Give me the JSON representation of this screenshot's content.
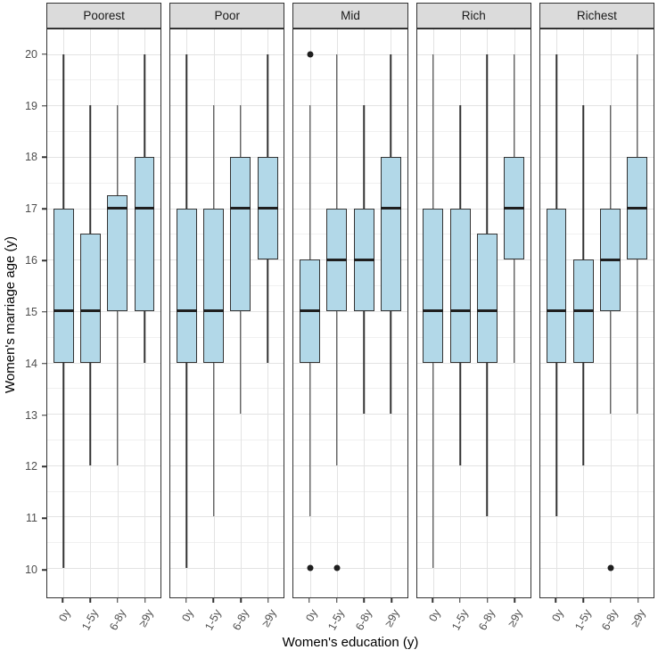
{
  "chart_data": {
    "type": "boxplot",
    "title": "",
    "xlabel": "Women's education (y)",
    "ylabel": "Women's marriage age (y)",
    "categories": [
      "0y",
      "1-5y",
      "6-8y",
      "≥9y"
    ],
    "yticks": [
      10,
      11,
      12,
      13,
      14,
      15,
      16,
      17,
      18,
      19,
      20
    ],
    "ylim": [
      10,
      20
    ],
    "grid": {
      "major": true,
      "minor": true
    },
    "legend": "none",
    "facets": [
      {
        "label": "Poorest",
        "boxes": [
          {
            "category": "0y",
            "whisker_low": 10,
            "q1": 14,
            "median": 15,
            "q3": 17,
            "whisker_high": 20,
            "outliers": []
          },
          {
            "category": "1-5y",
            "whisker_low": 12,
            "q1": 14,
            "median": 15,
            "q3": 16.5,
            "whisker_high": 19,
            "outliers": []
          },
          {
            "category": "6-8y",
            "whisker_low": 12,
            "q1": 15,
            "median": 17,
            "q3": 17.25,
            "whisker_high": 19,
            "outliers": []
          },
          {
            "category": "≥9y",
            "whisker_low": 14,
            "q1": 15,
            "median": 17,
            "q3": 18,
            "whisker_high": 20,
            "outliers": []
          }
        ]
      },
      {
        "label": "Poor",
        "boxes": [
          {
            "category": "0y",
            "whisker_low": 10,
            "q1": 14,
            "median": 15,
            "q3": 17,
            "whisker_high": 20,
            "outliers": []
          },
          {
            "category": "1-5y",
            "whisker_low": 11,
            "q1": 14,
            "median": 15,
            "q3": 17,
            "whisker_high": 19,
            "outliers": []
          },
          {
            "category": "6-8y",
            "whisker_low": 13,
            "q1": 15,
            "median": 17,
            "q3": 18,
            "whisker_high": 19,
            "outliers": []
          },
          {
            "category": "≥9y",
            "whisker_low": 14,
            "q1": 16,
            "median": 17,
            "q3": 18,
            "whisker_high": 20,
            "outliers": []
          }
        ]
      },
      {
        "label": "Mid",
        "boxes": [
          {
            "category": "0y",
            "whisker_low": 11,
            "q1": 14,
            "median": 15,
            "q3": 16,
            "whisker_high": 19,
            "outliers": [
              20,
              10
            ]
          },
          {
            "category": "1-5y",
            "whisker_low": 12,
            "q1": 15,
            "median": 16,
            "q3": 17,
            "whisker_high": 20,
            "outliers": [
              10
            ]
          },
          {
            "category": "6-8y",
            "whisker_low": 13,
            "q1": 15,
            "median": 16,
            "q3": 17,
            "whisker_high": 19,
            "outliers": []
          },
          {
            "category": "≥9y",
            "whisker_low": 13,
            "q1": 15,
            "median": 17,
            "q3": 18,
            "whisker_high": 20,
            "outliers": []
          }
        ]
      },
      {
        "label": "Rich",
        "boxes": [
          {
            "category": "0y",
            "whisker_low": 10,
            "q1": 14,
            "median": 15,
            "q3": 17,
            "whisker_high": 20,
            "outliers": []
          },
          {
            "category": "1-5y",
            "whisker_low": 12,
            "q1": 14,
            "median": 15,
            "q3": 17,
            "whisker_high": 19,
            "outliers": []
          },
          {
            "category": "6-8y",
            "whisker_low": 11,
            "q1": 14,
            "median": 15,
            "q3": 16.5,
            "whisker_high": 20,
            "outliers": []
          },
          {
            "category": "≥9y",
            "whisker_low": 14,
            "q1": 16,
            "median": 17,
            "q3": 18,
            "whisker_high": 20,
            "outliers": []
          }
        ]
      },
      {
        "label": "Richest",
        "boxes": [
          {
            "category": "0y",
            "whisker_low": 11,
            "q1": 14,
            "median": 15,
            "q3": 17,
            "whisker_high": 20,
            "outliers": []
          },
          {
            "category": "1-5y",
            "whisker_low": 12,
            "q1": 14,
            "median": 15,
            "q3": 16,
            "whisker_high": 19,
            "outliers": []
          },
          {
            "category": "6-8y",
            "whisker_low": 13,
            "q1": 15,
            "median": 16,
            "q3": 17,
            "whisker_high": 19,
            "outliers": [
              10
            ]
          },
          {
            "category": "≥9y",
            "whisker_low": 13,
            "q1": 16,
            "median": 17,
            "q3": 18,
            "whisker_high": 20,
            "outliers": []
          }
        ]
      }
    ],
    "colors": {
      "box_fill": "#B2D8E8",
      "box_stroke": "#333333",
      "median": "#1F1F1F",
      "outlier": "#1F1F1F",
      "strip_bg": "#DBDBDB",
      "strip_border": "#333333",
      "panel_border": "#333333",
      "grid_major": "#E3E3E3",
      "grid_minor": "#F0F0F0",
      "tick_text": "#4D4D4D",
      "title_text": "#000000"
    },
    "layout": {
      "ylim_expanded": [
        9.43,
        20.48
      ],
      "category_positions": [
        0.143,
        0.381,
        0.619,
        0.857
      ],
      "box_width_frac": 0.18,
      "x_tick_angle_deg": -62
    }
  }
}
